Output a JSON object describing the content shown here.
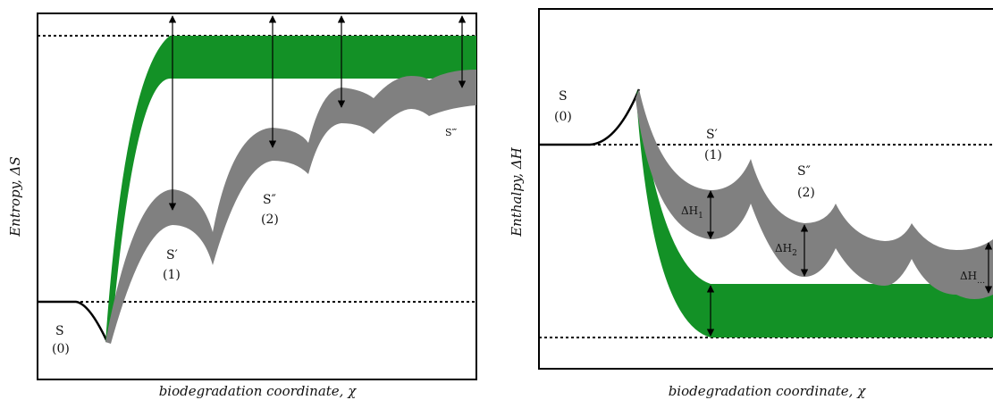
{
  "left_panel": {
    "y_axis_label": "Entropy, ΔS",
    "x_axis_label": "biodegradation coordinate, χ",
    "state_0": {
      "label": "S",
      "index": "(0)"
    },
    "state_1": {
      "label": "S′",
      "index": "(1)"
    },
    "state_2": {
      "label": "S″",
      "index": "(2)"
    },
    "state_3": {
      "label": "S‴"
    }
  },
  "right_panel": {
    "y_axis_label": "Enthalpy, ΔH",
    "x_axis_label": "biodegradation coordinate, χ",
    "state_0": {
      "label": "S",
      "index": "(0)"
    },
    "state_1": {
      "label": "S′",
      "index": "(1)"
    },
    "state_2": {
      "label": "S″",
      "index": "(2)"
    },
    "delta_1": {
      "label": "ΔH",
      "sub": "1"
    },
    "delta_2": {
      "label": "ΔH",
      "sub": "2"
    },
    "delta_n": {
      "label": "ΔH",
      "sub": "…"
    }
  }
}
